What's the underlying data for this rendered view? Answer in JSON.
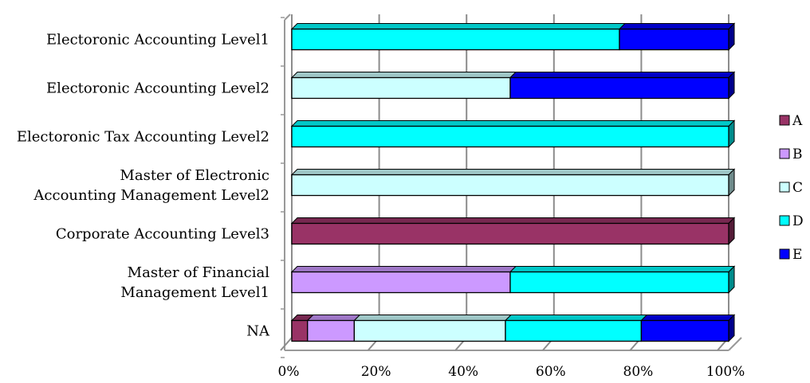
{
  "chart_data": {
    "type": "bar",
    "orientation": "horizontal",
    "stacked": "percent",
    "categories": [
      [
        "Electoronic Accounting Level1"
      ],
      [
        "Electoronic Accounting Level2"
      ],
      [
        "Electoronic Tax Accounting Level2"
      ],
      [
        "Master of Electronic",
        "Accounting Management Level2"
      ],
      [
        "Corporate Accounting Level3"
      ],
      [
        "Master of Financial",
        "Management Level1"
      ],
      [
        "NA"
      ]
    ],
    "series": [
      {
        "name": "A",
        "color": "#993366",
        "values": [
          0,
          0,
          0,
          0,
          100,
          0,
          3.6
        ]
      },
      {
        "name": "B",
        "color": "#CC99FF",
        "values": [
          0,
          0,
          0,
          0,
          0,
          50,
          10.7
        ]
      },
      {
        "name": "C",
        "color": "#CCFFFF",
        "values": [
          0,
          50,
          0,
          100,
          0,
          0,
          34.6
        ]
      },
      {
        "name": "D",
        "color": "#00FFFF",
        "values": [
          75,
          0,
          100,
          0,
          0,
          50,
          31.1
        ]
      },
      {
        "name": "E",
        "color": "#0000FF",
        "values": [
          25,
          50,
          0,
          0,
          0,
          0,
          20.0
        ]
      }
    ],
    "x_ticks": [
      "0%",
      "20%",
      "40%",
      "60%",
      "80%",
      "100%"
    ],
    "xlim": [
      0,
      100
    ],
    "grid": true,
    "legend_position": "right"
  }
}
